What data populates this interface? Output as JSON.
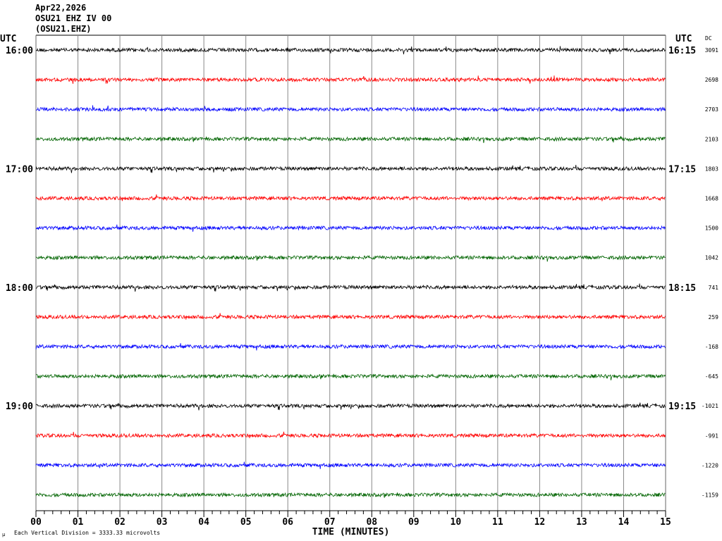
{
  "header": {
    "date": "Apr22,2026",
    "station": "OSU21 EHZ IV 00",
    "channel": "(OSU21.EHZ)"
  },
  "footer": {
    "scale_note": "Each Vertical Division = 3333.33 microvolts",
    "mu_symbol": "µ"
  },
  "chart_data": {
    "type": "line",
    "title": "",
    "xlabel": "TIME (MINUTES)",
    "xlim": [
      0,
      15
    ],
    "x_ticks": [
      "00",
      "01",
      "02",
      "03",
      "04",
      "05",
      "06",
      "07",
      "08",
      "09",
      "10",
      "11",
      "12",
      "13",
      "14",
      "15"
    ],
    "left_axis_title": "UTC",
    "right_axis_title": "UTC",
    "dc_title": "DC",
    "grid": "vertical",
    "colors": [
      "#000000",
      "#ff0000",
      "#0000ff",
      "#006400"
    ],
    "traces": [
      {
        "left": "16:00",
        "right": "16:15",
        "dc": "3091"
      },
      {
        "left": "",
        "right": "",
        "dc": "2698"
      },
      {
        "left": "",
        "right": "",
        "dc": "2703"
      },
      {
        "left": "",
        "right": "",
        "dc": "2103"
      },
      {
        "left": "17:00",
        "right": "17:15",
        "dc": "1803"
      },
      {
        "left": "",
        "right": "",
        "dc": "1668"
      },
      {
        "left": "",
        "right": "",
        "dc": "1500"
      },
      {
        "left": "",
        "right": "",
        "dc": "1042"
      },
      {
        "left": "18:00",
        "right": "18:15",
        "dc": "741"
      },
      {
        "left": "",
        "right": "",
        "dc": "259"
      },
      {
        "left": "",
        "right": "",
        "dc": "-168"
      },
      {
        "left": "",
        "right": "",
        "dc": "-645"
      },
      {
        "left": "19:00",
        "right": "19:15",
        "dc": "-1021"
      },
      {
        "left": "",
        "right": "",
        "dc": "-991"
      },
      {
        "left": "",
        "right": "",
        "dc": "-1220"
      },
      {
        "left": "",
        "right": "",
        "dc": "-1159"
      }
    ]
  }
}
